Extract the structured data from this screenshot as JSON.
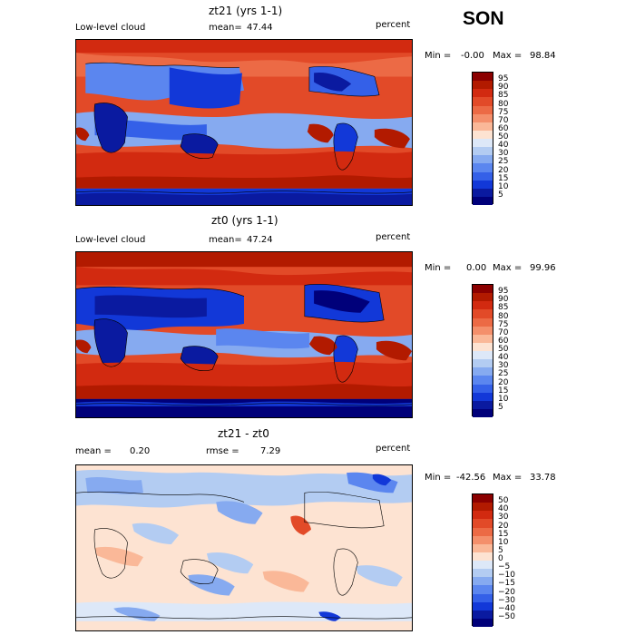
{
  "season": "SON",
  "panels": [
    {
      "title": "zt21 (yrs 1-1)",
      "left_label": "Low-level cloud",
      "stat_label": "mean=",
      "stat_value": "47.44",
      "units": "percent",
      "min_label": "Min =",
      "min_value": "-0.00",
      "max_label": "Max =",
      "max_value": "98.84",
      "colorbar_labels": [
        "95",
        "90",
        "85",
        "80",
        "75",
        "70",
        "60",
        "50",
        "40",
        "30",
        "25",
        "20",
        "15",
        "10",
        "5"
      ]
    },
    {
      "title": "zt0 (yrs 1-1)",
      "left_label": "Low-level cloud",
      "stat_label": "mean=",
      "stat_value": "47.24",
      "units": "percent",
      "min_label": "Min =",
      "min_value": "0.00",
      "max_label": "Max =",
      "max_value": "99.96",
      "colorbar_labels": [
        "95",
        "90",
        "85",
        "80",
        "75",
        "70",
        "60",
        "50",
        "40",
        "30",
        "25",
        "20",
        "15",
        "10",
        "5"
      ]
    },
    {
      "title": "zt21 - zt0",
      "left_label": "mean =",
      "left_value": "0.20",
      "stat_label": "rmse =",
      "stat_value": "7.29",
      "units": "percent",
      "min_label": "Min =",
      "min_value": "-42.56",
      "max_label": "Max =",
      "max_value": "33.78",
      "colorbar_labels": [
        "50",
        "40",
        "30",
        "20",
        "15",
        "10",
        "5",
        "0",
        "−5",
        "−10",
        "−15",
        "−20",
        "−30",
        "−40",
        "−50"
      ]
    }
  ],
  "colors": {
    "abs_scale": [
      "#8b0000",
      "#b21a00",
      "#d22a10",
      "#e24a28",
      "#ec6a45",
      "#f48f6b",
      "#fab898",
      "#fde3d2",
      "#dde8f8",
      "#b3ccf2",
      "#86aaf0",
      "#5b86ef",
      "#3460e8",
      "#1238d8",
      "#0a1aa0",
      "#00007a"
    ],
    "diff_scale": [
      "#8b0000",
      "#b21a00",
      "#d22a10",
      "#e24a28",
      "#ec6a45",
      "#f48f6b",
      "#fab898",
      "#fde3d2",
      "#dde8f8",
      "#b3ccf2",
      "#86aaf0",
      "#5b86ef",
      "#3460e8",
      "#1238d8",
      "#0a1aa0",
      "#00007a"
    ],
    "coastline": "#000000"
  }
}
